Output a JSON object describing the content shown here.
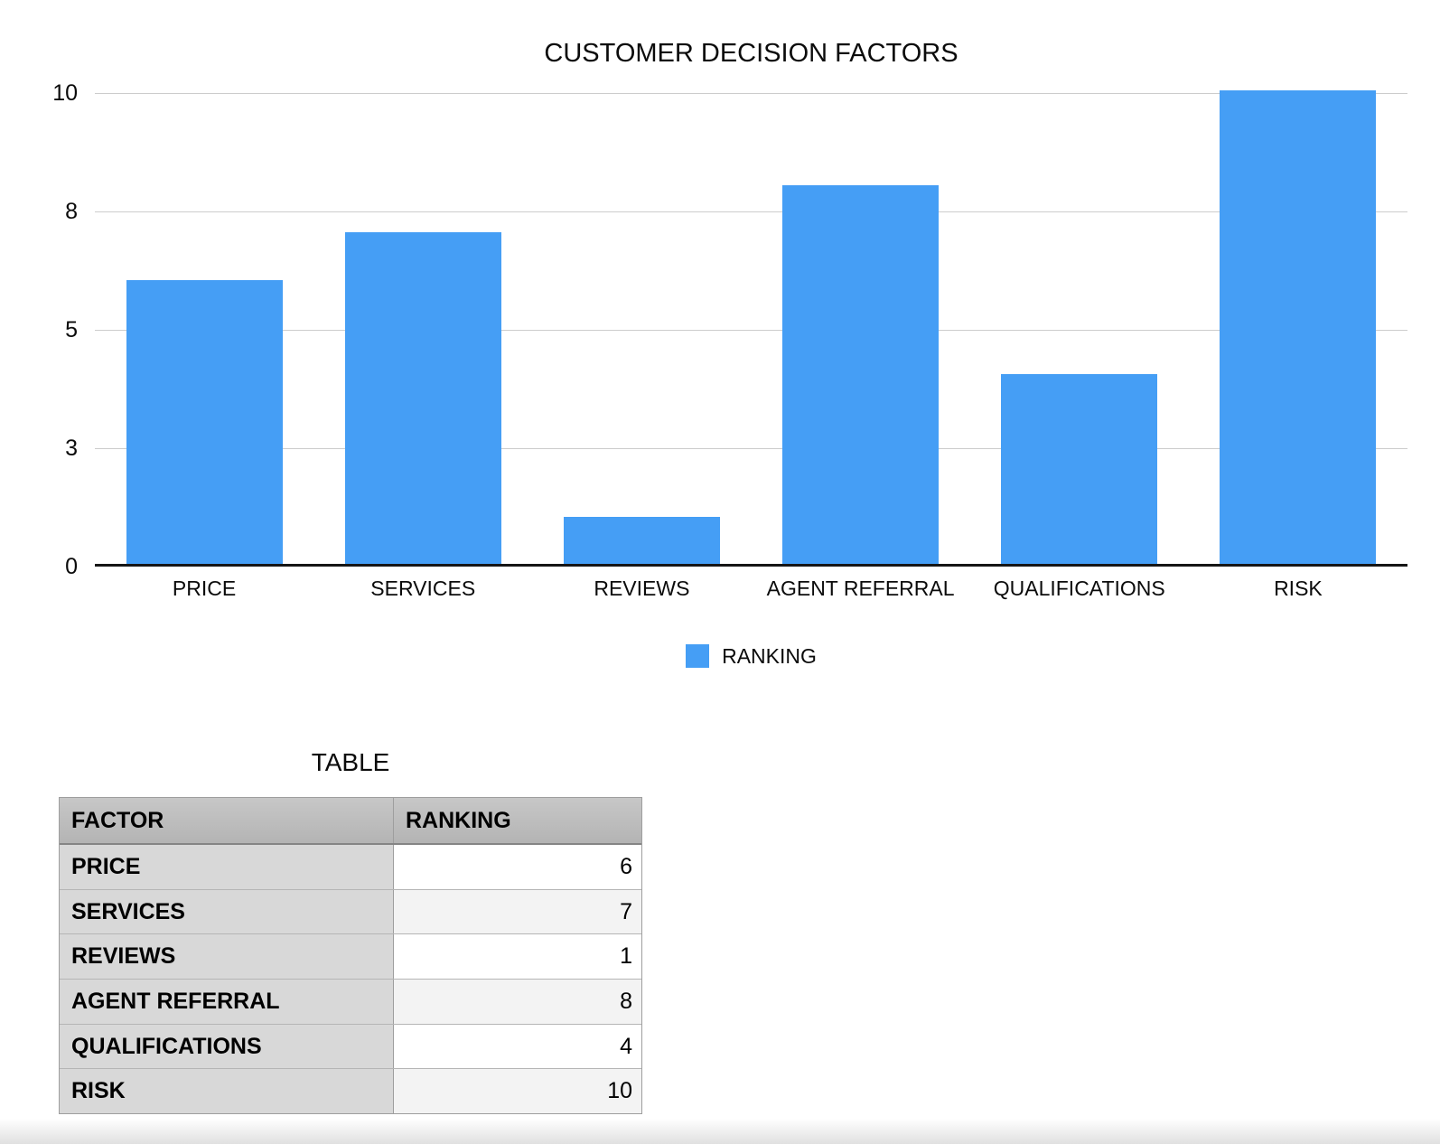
{
  "chart": {
    "title": "CUSTOMER DECISION FACTORS",
    "legend": {
      "label": "RANKING"
    },
    "colors": {
      "bar": "#459EF5",
      "gridline": "#cccccc",
      "axis": "#161616"
    }
  },
  "chart_data": {
    "type": "bar",
    "title": "CUSTOMER DECISION FACTORS",
    "categories": [
      "PRICE",
      "SERVICES",
      "REVIEWS",
      "AGENT REFERRAL",
      "QUALIFICATIONS",
      "RISK"
    ],
    "series": [
      {
        "name": "RANKING",
        "values": [
          6,
          7,
          1,
          8,
          4,
          10
        ]
      }
    ],
    "xlabel": "",
    "ylabel": "",
    "ylim": [
      0,
      10
    ],
    "grid": true,
    "gridline_values": [
      0,
      2.5,
      5,
      7.5,
      10
    ],
    "y_tick_labels": [
      "0",
      "3",
      "5",
      "8",
      "10"
    ],
    "legend_position": "bottom"
  },
  "table": {
    "title": "TABLE",
    "columns": [
      "FACTOR",
      "RANKING"
    ],
    "rows": [
      {
        "factor": "PRICE",
        "ranking": "6"
      },
      {
        "factor": "SERVICES",
        "ranking": "7"
      },
      {
        "factor": "REVIEWS",
        "ranking": "1"
      },
      {
        "factor": "AGENT REFERRAL",
        "ranking": "8"
      },
      {
        "factor": "QUALIFICATIONS",
        "ranking": "4"
      },
      {
        "factor": "RISK",
        "ranking": "10"
      }
    ],
    "colors": {
      "header_bg": "#bfbfbf",
      "factor_cell_bg": "#d8d8d8",
      "value_row_odd_bg": "#ffffff",
      "value_row_even_bg": "#f3f3f3"
    }
  }
}
